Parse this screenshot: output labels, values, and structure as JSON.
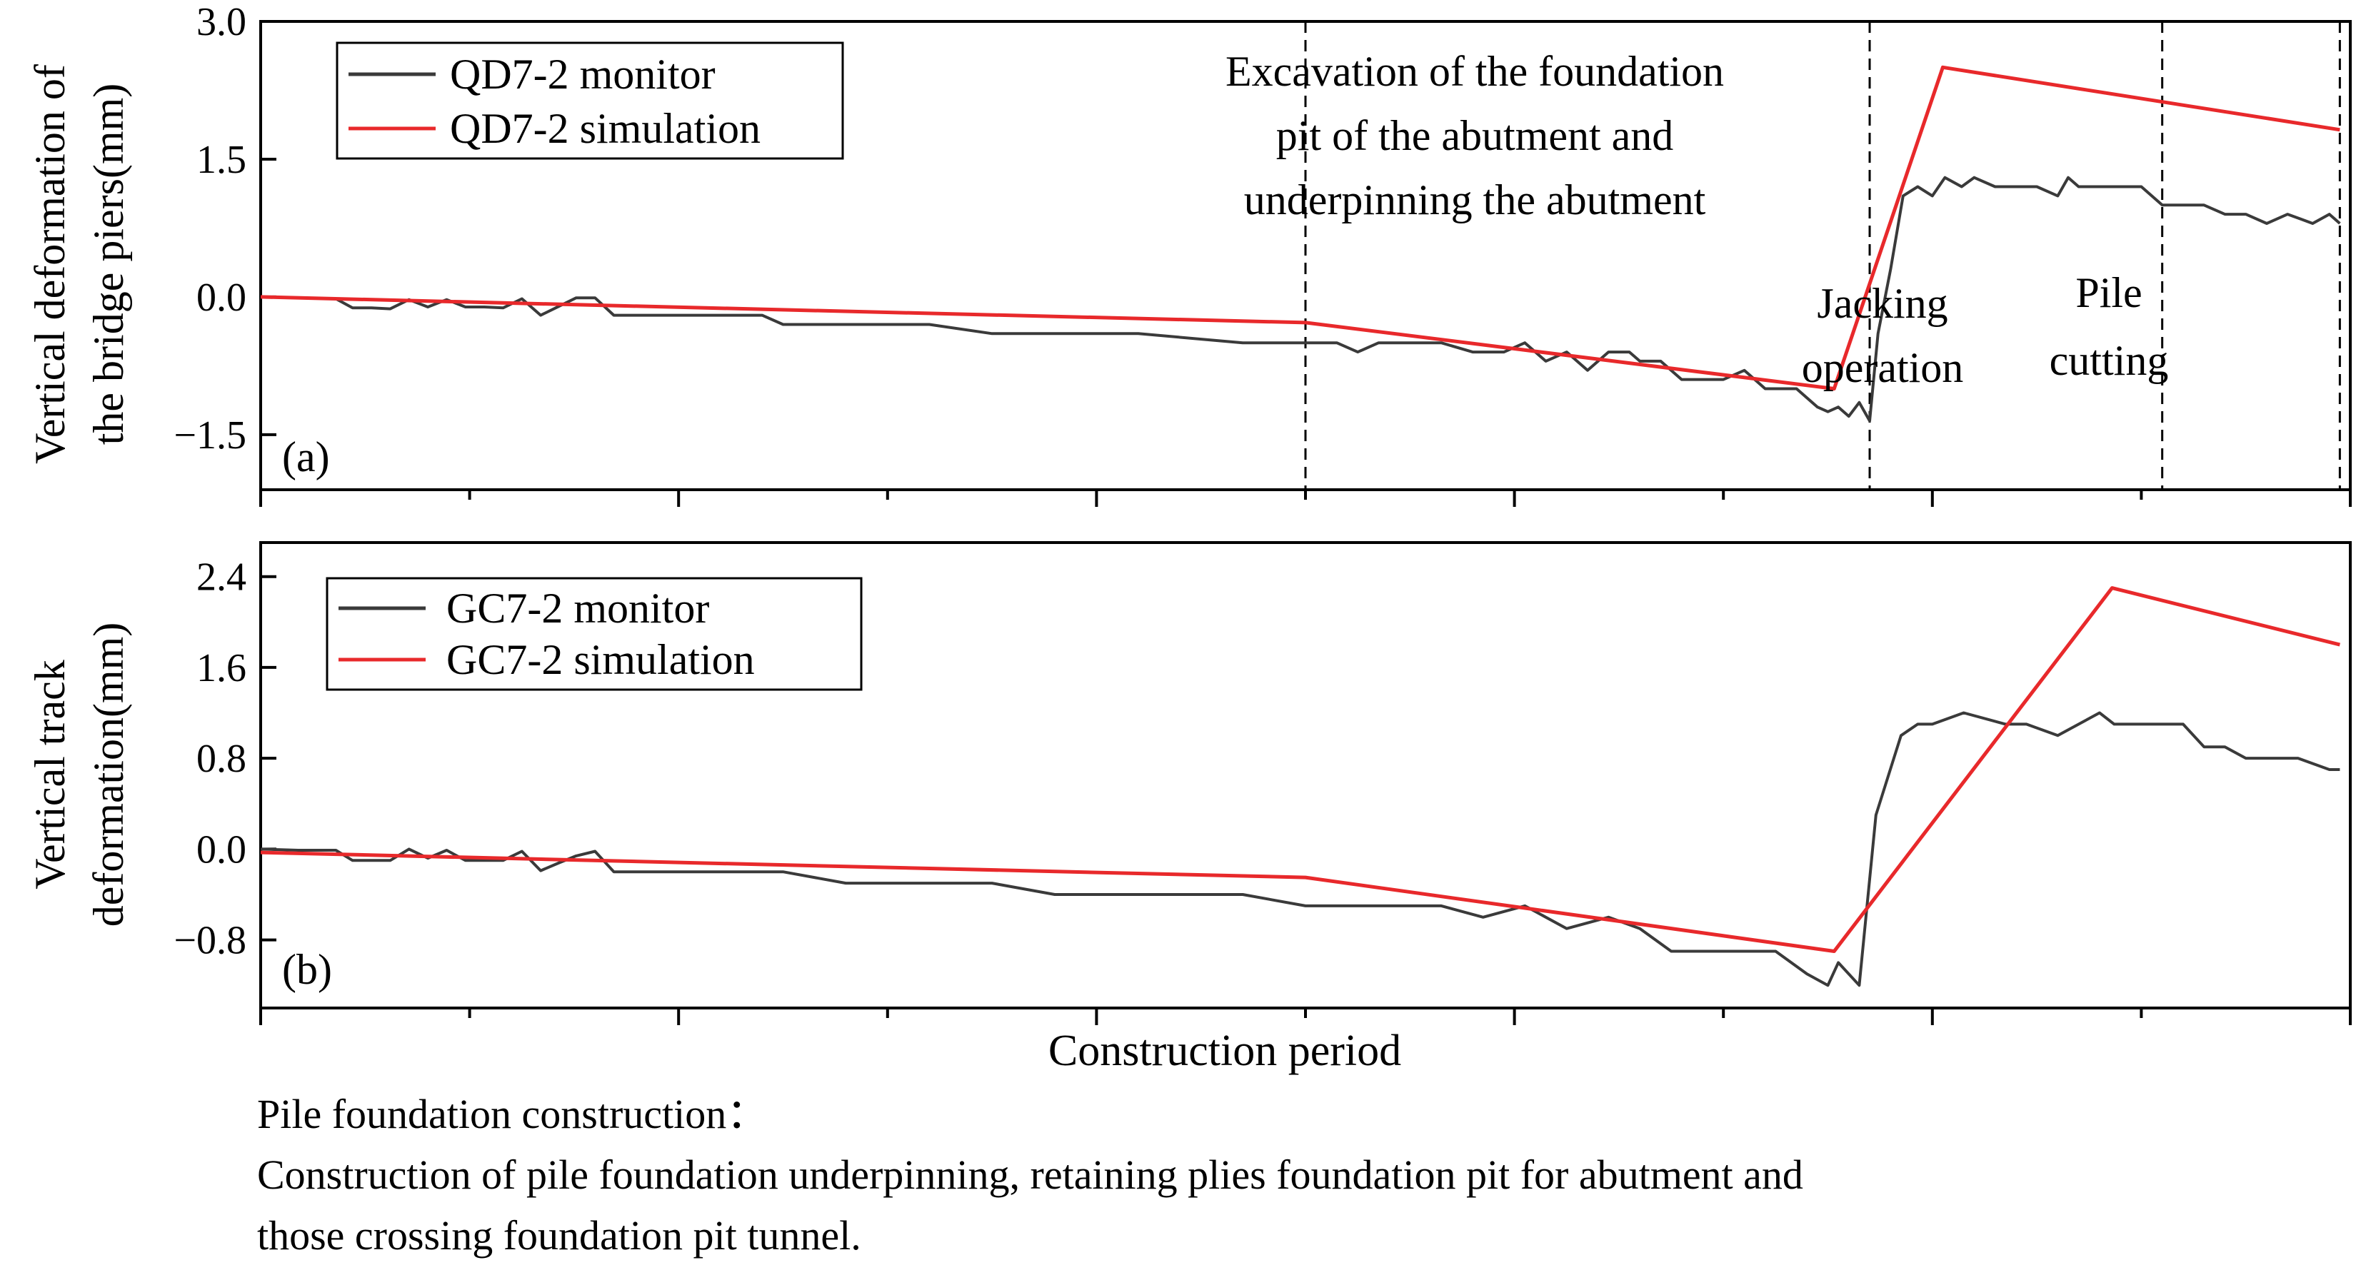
{
  "chart_data": [
    {
      "id": "a",
      "type": "line",
      "panel_label": "(a)",
      "ylabel_lines": [
        "Vertical deformation of",
        "the bridge piers(mm)"
      ],
      "ylim": [
        -2.1,
        3.0
      ],
      "yticks": [
        "3.0",
        "1.5",
        "0.0",
        "−1.5"
      ],
      "ytick_values": [
        3.0,
        1.5,
        0.0,
        -1.5
      ],
      "xlim": [
        0,
        100
      ],
      "legend": [
        "QD7-2 monitor",
        "QD7-2 simulation"
      ],
      "phase_markers": [
        50,
        77,
        91,
        99.5
      ],
      "annotations": [
        {
          "lines": [
            "Excavation of the foundation",
            "pit of the abutment and",
            "underpinning the abutment"
          ]
        },
        {
          "lines": [
            "Jacking",
            "operation"
          ]
        },
        {
          "lines": [
            "Pile",
            "cutting"
          ]
        }
      ],
      "series": [
        {
          "name": "QD7-2 monitor",
          "color": "#3a3a3a",
          "x": [
            0,
            1.8,
            3.6,
            4.4,
            5.3,
            6.2,
            7.1,
            8.0,
            8.9,
            9.8,
            10.7,
            11.6,
            12.5,
            13.4,
            14.3,
            15.1,
            16.0,
            16.9,
            17.8,
            18.7,
            19.6,
            20.5,
            21.3,
            22.2,
            23.1,
            24.0,
            25.0,
            28.0,
            32.0,
            35.0,
            37.0,
            38.5,
            42.0,
            47.0,
            50.0,
            51.5,
            52.5,
            53.5,
            54.5,
            55.5,
            56.5,
            58.0,
            59.5,
            60.5,
            61.5,
            62.5,
            63.5,
            64.5,
            65.5,
            66.0,
            67.0,
            68.0,
            69.0,
            70.0,
            71.0,
            72.0,
            73.5,
            74.5,
            75.0,
            75.5,
            76.0,
            76.5,
            77.0,
            77.4,
            78.0,
            78.6,
            79.3,
            80.0,
            80.6,
            81.4,
            82.0,
            83.0,
            85.0,
            86.0,
            86.5,
            87.0,
            88.0,
            89.0,
            90.0,
            91.0,
            92.0,
            93.0,
            94.0,
            95.0,
            96.0,
            97.0,
            97.6,
            98.2,
            99.0,
            99.5
          ],
          "values": [
            0,
            -0.01,
            -0.02,
            -0.12,
            -0.12,
            -0.13,
            -0.03,
            -0.11,
            -0.03,
            -0.11,
            -0.11,
            -0.12,
            -0.02,
            -0.2,
            -0.1,
            -0.01,
            -0.01,
            -0.2,
            -0.2,
            -0.2,
            -0.2,
            -0.2,
            -0.2,
            -0.2,
            -0.2,
            -0.2,
            -0.3,
            -0.3,
            -0.3,
            -0.4,
            -0.4,
            -0.4,
            -0.4,
            -0.5,
            -0.5,
            -0.5,
            -0.6,
            -0.5,
            -0.5,
            -0.5,
            -0.5,
            -0.6,
            -0.6,
            -0.5,
            -0.7,
            -0.6,
            -0.8,
            -0.6,
            -0.6,
            -0.7,
            -0.7,
            -0.9,
            -0.9,
            -0.9,
            -0.8,
            -1.0,
            -1.0,
            -1.2,
            -1.25,
            -1.2,
            -1.3,
            -1.15,
            -1.35,
            -0.4,
            0.3,
            1.1,
            1.2,
            1.1,
            1.3,
            1.2,
            1.3,
            1.2,
            1.2,
            1.1,
            1.3,
            1.2,
            1.2,
            1.2,
            1.2,
            1.0,
            1.0,
            1.0,
            0.9,
            0.9,
            0.8,
            0.9,
            0.85,
            0.8,
            0.9,
            0.8
          ]
        },
        {
          "name": "QD7-2 simulation",
          "color": "#e8292b",
          "x": [
            0,
            50,
            75.3,
            80.5,
            99.5
          ],
          "values": [
            0,
            -0.28,
            -1.0,
            2.5,
            1.82
          ]
        }
      ]
    },
    {
      "id": "b",
      "type": "line",
      "panel_label": "(b)",
      "ylabel_lines": [
        "Vertical track",
        "deformation(mm)"
      ],
      "ylim": [
        -1.4,
        2.7
      ],
      "yticks": [
        "2.4",
        "1.6",
        "0.8",
        "0.0",
        "−0.8"
      ],
      "ytick_values": [
        2.4,
        1.6,
        0.8,
        0.0,
        -0.8
      ],
      "xlim": [
        0,
        100
      ],
      "legend": [
        "GC7-2 monitor",
        "GC7-2 simulation"
      ],
      "series": [
        {
          "name": "GC7-2 monitor",
          "color": "#3a3a3a",
          "x": [
            0,
            1.8,
            3.6,
            4.4,
            5.3,
            6.2,
            7.1,
            8.0,
            8.9,
            9.8,
            10.7,
            11.6,
            12.5,
            13.4,
            14.3,
            15.1,
            16.0,
            16.9,
            17.8,
            18.7,
            19.6,
            20.5,
            22.0,
            23.5,
            25.0,
            28.0,
            32.0,
            35.0,
            38.0,
            42.0,
            47.0,
            50.0,
            53.0,
            56.5,
            58.5,
            60.5,
            62.5,
            64.5,
            66.0,
            67.5,
            69.0,
            70.5,
            72.5,
            74.0,
            75.0,
            75.5,
            76.5,
            77.3,
            78.5,
            79.3,
            80.0,
            81.5,
            83.5,
            84.5,
            86.0,
            88.0,
            88.7,
            89.5,
            91.0,
            92.0,
            93.0,
            94.0,
            95.0,
            96.0,
            97.5,
            99.0,
            99.5
          ],
          "values": [
            0,
            -0.01,
            -0.01,
            -0.1,
            -0.1,
            -0.1,
            0.0,
            -0.08,
            -0.01,
            -0.1,
            -0.1,
            -0.1,
            -0.02,
            -0.19,
            -0.12,
            -0.06,
            -0.02,
            -0.2,
            -0.2,
            -0.2,
            -0.2,
            -0.2,
            -0.2,
            -0.2,
            -0.2,
            -0.3,
            -0.3,
            -0.3,
            -0.4,
            -0.4,
            -0.4,
            -0.5,
            -0.5,
            -0.5,
            -0.6,
            -0.5,
            -0.7,
            -0.6,
            -0.7,
            -0.9,
            -0.9,
            -0.9,
            -0.9,
            -1.1,
            -1.2,
            -1.0,
            -1.2,
            0.3,
            1.0,
            1.1,
            1.1,
            1.2,
            1.1,
            1.1,
            1.0,
            1.2,
            1.1,
            1.1,
            1.1,
            1.1,
            0.9,
            0.9,
            0.8,
            0.8,
            0.8,
            0.7,
            0.7
          ]
        },
        {
          "name": "GC7-2 simulation",
          "color": "#e8292b",
          "x": [
            0,
            50,
            75.3,
            88.6,
            99.5
          ],
          "values": [
            -0.03,
            -0.25,
            -0.9,
            2.3,
            1.8
          ]
        }
      ]
    }
  ],
  "xlabel": "Construction period",
  "caption": {
    "line1": "Pile foundation construction：",
    "line2": "Construction of pile foundation underpinning, retaining plies foundation pit for abutment and",
    "line3": "those crossing foundation pit tunnel."
  }
}
